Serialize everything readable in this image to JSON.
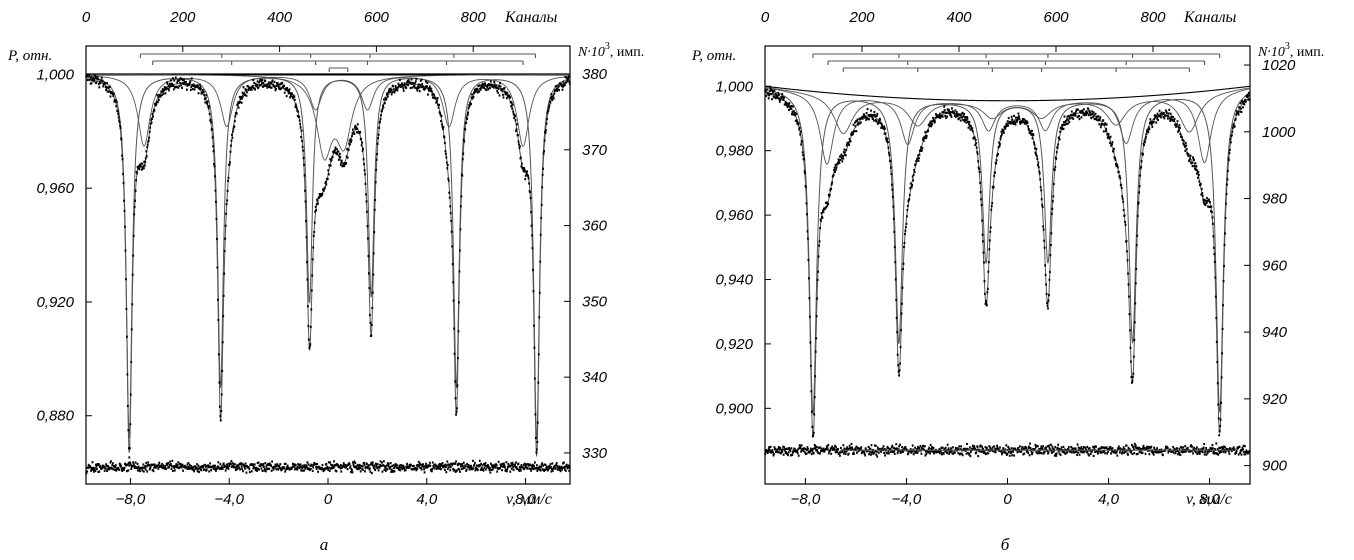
{
  "colors": {
    "data": "#000000",
    "fit": "#555555",
    "frame": "#000000"
  },
  "chart_data": [
    {
      "type": "line",
      "panel_label": "а",
      "xlabel": "v, мм/с",
      "ylabel_left": "P, отн.",
      "ylabel_right_prefix": "N·10",
      "ylabel_right_sup": "3",
      "ylabel_right_suffix": ", имп.",
      "xlabel_top": "Каналы",
      "xlim": [
        -9.8,
        9.8
      ],
      "ylim": [
        0.856,
        1.01
      ],
      "right_axis_lim": [
        325.9,
        383.7
      ],
      "xticks": [
        "-8,0",
        "-4,0",
        "0",
        "4,0",
        "8,0"
      ],
      "yticks_left": [
        "1,000",
        "0,960",
        "0,920",
        "0,880"
      ],
      "yticks_right": [
        "380",
        "370",
        "360",
        "350",
        "340",
        "330"
      ],
      "xticks_top": [
        "0",
        "200",
        "400",
        "600",
        "800"
      ],
      "channels_lim": [
        0,
        1000
      ],
      "baseline": 1.0,
      "residual_level": 0.862,
      "sextets": [
        {
          "name": "",
          "lines": [
            -8.05,
            -4.35,
            -0.75,
            1.75,
            5.2,
            8.45
          ],
          "depths": [
            0.128,
            0.11,
            0.08,
            0.078,
            0.11,
            0.128
          ],
          "width": 0.14
        }
      ],
      "minor_sextets": [
        {
          "name": "",
          "lines": [
            -7.45,
            -4.1,
            -0.5,
            1.6,
            4.9,
            7.9
          ],
          "depths": [
            0.025,
            0.018,
            0.012,
            0.012,
            0.018,
            0.025
          ],
          "width": 0.3
        }
      ],
      "center_doublet": {
        "lines": [
          -0.15,
          0.65
        ],
        "depths": [
          0.026,
          0.022
        ],
        "width": 0.38
      },
      "stick_brackets": [
        {
          "level": 1,
          "lines": [
            -7.6,
            -4.3,
            -0.7,
            1.7,
            5.1,
            8.4
          ]
        },
        {
          "level": 2,
          "lines": [
            -7.1,
            -3.9,
            -0.5,
            1.6,
            4.8,
            7.9
          ]
        },
        {
          "level": 3,
          "lines": [
            0.05,
            0.8
          ]
        }
      ]
    },
    {
      "type": "line",
      "panel_label": "б",
      "xlabel": "v, мм/с",
      "ylabel_left": "P, отн.",
      "ylabel_right_prefix": "N·10",
      "ylabel_right_sup": "3",
      "ylabel_right_suffix": ", имп.",
      "xlabel_top": "Каналы",
      "xlim": [
        -9.6,
        9.6
      ],
      "ylim": [
        0.8765,
        1.0125
      ],
      "right_axis_lim": [
        894.5,
        1025.7
      ],
      "xticks": [
        "-8,0",
        "-4,0",
        "0",
        "4,0",
        "8,0"
      ],
      "yticks_left": [
        "1,000",
        "0,980",
        "0,960",
        "0,940",
        "0,920",
        "0,900"
      ],
      "yticks_right": [
        "1020",
        "1000",
        "980",
        "960",
        "940",
        "920",
        "900"
      ],
      "xticks_top": [
        "0",
        "200",
        "400",
        "600",
        "800"
      ],
      "channels_lim": [
        0,
        1000
      ],
      "baseline_curved": {
        "edge": 1.0,
        "center": 0.9955
      },
      "residual_level": 0.887,
      "sextets": [
        {
          "name": "",
          "lines": [
            -7.7,
            -4.3,
            -0.85,
            1.6,
            4.95,
            8.4
          ],
          "depths": [
            0.1,
            0.076,
            0.05,
            0.05,
            0.076,
            0.1
          ],
          "width": 0.17
        }
      ],
      "minor_sextets": [
        {
          "name": "",
          "lines": [
            -7.15,
            -3.95,
            -0.75,
            1.5,
            4.7,
            7.8
          ],
          "depths": [
            0.022,
            0.014,
            0.009,
            0.009,
            0.014,
            0.022
          ],
          "width": 0.32
        },
        {
          "name": "",
          "lines": [
            -6.5,
            -3.55,
            -0.6,
            1.35,
            4.3,
            7.2
          ],
          "depths": [
            0.012,
            0.008,
            0.005,
            0.005,
            0.008,
            0.012
          ],
          "width": 0.45
        }
      ],
      "stick_brackets": [
        {
          "level": 1,
          "lines": [
            -7.7,
            -4.3,
            -0.85,
            1.6,
            4.95,
            8.4
          ]
        },
        {
          "level": 2,
          "lines": [
            -7.1,
            -3.95,
            -0.75,
            1.5,
            4.7,
            7.8
          ]
        },
        {
          "level": 3,
          "lines": [
            -6.5,
            -3.55,
            -0.6,
            1.35,
            4.3,
            7.2
          ]
        }
      ]
    }
  ]
}
